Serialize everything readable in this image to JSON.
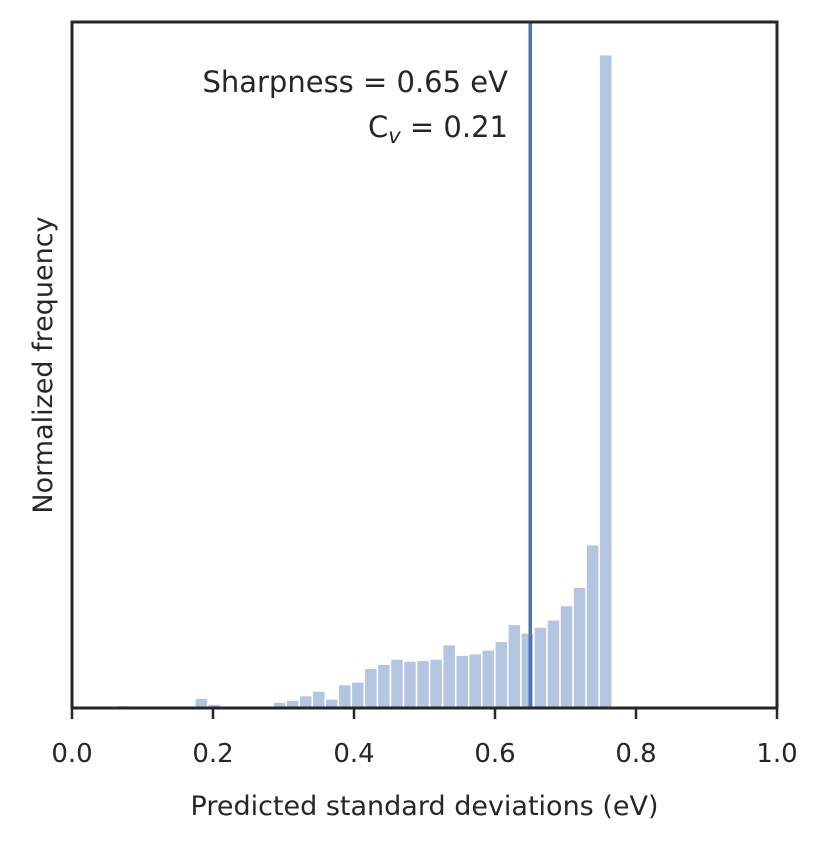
{
  "chart_data": {
    "type": "bar",
    "xlabel": "Predicted standard deviations (eV)",
    "ylabel": "Normalized frequency",
    "xlim": [
      0.0,
      1.0
    ],
    "ylim": [
      0,
      1.05
    ],
    "x_ticks": [
      "0.0",
      "0.2",
      "0.4",
      "0.6",
      "0.8",
      "1.0"
    ],
    "show_y_ticks": false,
    "grid": false,
    "bar_color": "#b3c5e0",
    "bar_edge_color": "#ffffff",
    "line_color": "#4c72b0",
    "frame_color": "#262626",
    "bin_width": 0.0185,
    "bins": [
      {
        "x": 0.0725,
        "y": 0.004
      },
      {
        "x": 0.165,
        "y": 0.003
      },
      {
        "x": 0.1835,
        "y": 0.015
      },
      {
        "x": 0.202,
        "y": 0.006
      },
      {
        "x": 0.2575,
        "y": 0.002
      },
      {
        "x": 0.276,
        "y": 0.003
      },
      {
        "x": 0.2945,
        "y": 0.009
      },
      {
        "x": 0.313,
        "y": 0.012
      },
      {
        "x": 0.3315,
        "y": 0.019
      },
      {
        "x": 0.35,
        "y": 0.026
      },
      {
        "x": 0.3685,
        "y": 0.014
      },
      {
        "x": 0.387,
        "y": 0.036
      },
      {
        "x": 0.4055,
        "y": 0.04
      },
      {
        "x": 0.424,
        "y": 0.061
      },
      {
        "x": 0.4425,
        "y": 0.067
      },
      {
        "x": 0.461,
        "y": 0.075
      },
      {
        "x": 0.4795,
        "y": 0.072
      },
      {
        "x": 0.498,
        "y": 0.073
      },
      {
        "x": 0.5165,
        "y": 0.075
      },
      {
        "x": 0.535,
        "y": 0.097
      },
      {
        "x": 0.5535,
        "y": 0.081
      },
      {
        "x": 0.572,
        "y": 0.083
      },
      {
        "x": 0.5905,
        "y": 0.089
      },
      {
        "x": 0.609,
        "y": 0.102
      },
      {
        "x": 0.6275,
        "y": 0.128
      },
      {
        "x": 0.646,
        "y": 0.115
      },
      {
        "x": 0.6645,
        "y": 0.124
      },
      {
        "x": 0.683,
        "y": 0.135
      },
      {
        "x": 0.7015,
        "y": 0.157
      },
      {
        "x": 0.72,
        "y": 0.185
      },
      {
        "x": 0.7385,
        "y": 0.25
      },
      {
        "x": 0.757,
        "y": 1.0
      }
    ],
    "vline_x": 0.65,
    "annotation": {
      "line1": "Sharpness = 0.65 eV",
      "line2_prefix": "C",
      "line2_sub": "v",
      "line2_suffix": " = 0.21"
    }
  }
}
